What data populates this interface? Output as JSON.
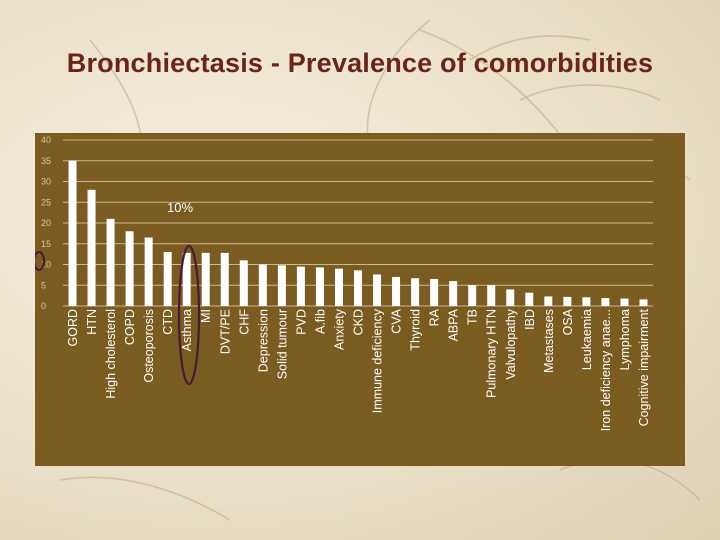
{
  "slide": {
    "title": "Bronchiectasis - Prevalence of comorbidities"
  },
  "colors": {
    "panel": "#7a5c20",
    "bar": "#ffffff",
    "gridline": "#c9b98f",
    "highlight": "#4a1a3a",
    "title": "#6b2418"
  },
  "chart_data": {
    "type": "bar",
    "title": "",
    "xlabel": "",
    "ylabel": "",
    "ylim": [
      0,
      40
    ],
    "yticks": [
      0,
      5,
      10,
      15,
      20,
      25,
      30,
      35,
      40
    ],
    "grid": true,
    "legend": "none",
    "annotation": "10%",
    "highlighted_category": "Asthma",
    "categories": [
      "GORD",
      "HTN",
      "High cholesterol",
      "COPD",
      "Osteoporosis",
      "CTD",
      "Asthma",
      "MI",
      "DVT/PE",
      "CHF",
      "Depression",
      "Solid tumour",
      "PVD",
      "A.fib",
      "Anxiety",
      "CKD",
      "Immune deficiency",
      "CVA",
      "Thyroid",
      "RA",
      "ABPA",
      "TB",
      "Pulmonary HTN",
      "Valvulopathy",
      "IBD",
      "Metastases",
      "OSA",
      "Leukaemia",
      "Iron deficiency anae...",
      "Lymphoma",
      "Cognitive impairment"
    ],
    "values": [
      35,
      28,
      21,
      18,
      16.5,
      13,
      12.8,
      12.8,
      12.8,
      11,
      10,
      9.8,
      9.5,
      9.3,
      9,
      8.6,
      7.6,
      7,
      6.7,
      6.5,
      6,
      5,
      5,
      4,
      3.2,
      2.3,
      2.2,
      2.1,
      1.9,
      1.8,
      1.6
    ]
  }
}
